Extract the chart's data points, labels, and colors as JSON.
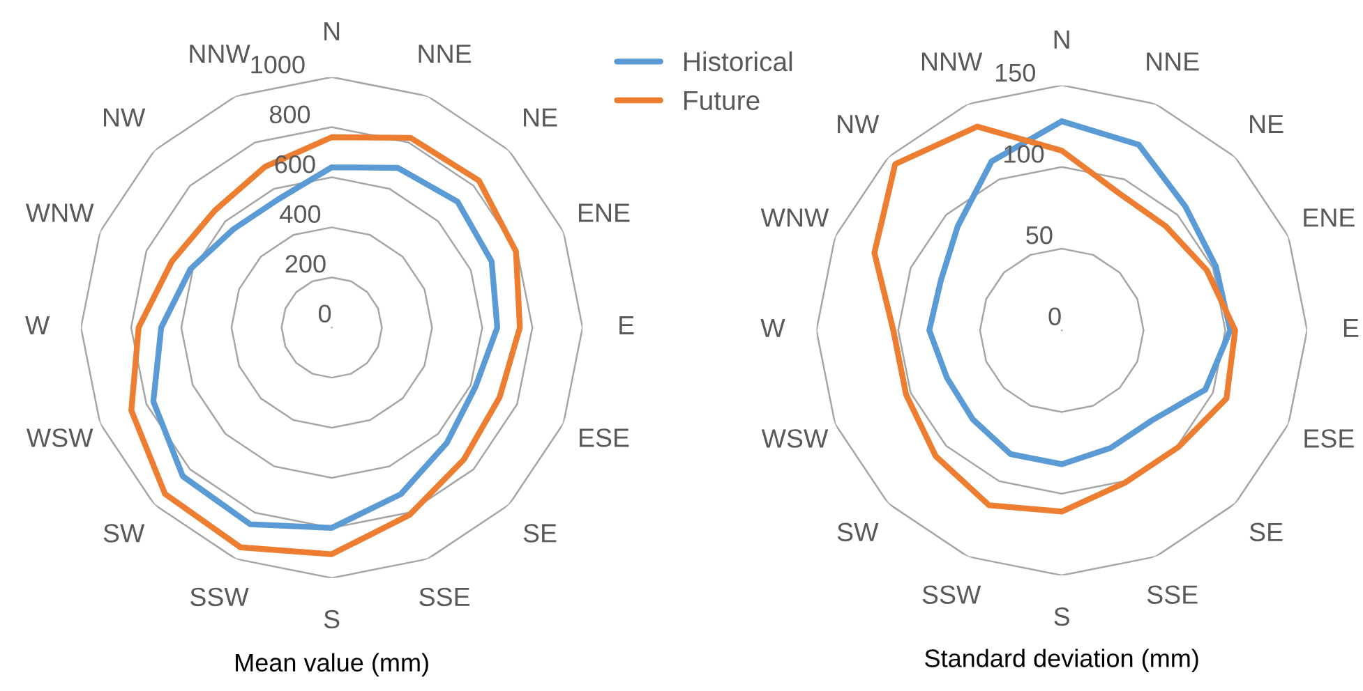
{
  "chart_data": [
    {
      "type": "radar",
      "xlabel": "Mean value (mm)",
      "categories": [
        "N",
        "NNE",
        "NE",
        "ENE",
        "E",
        "ESE",
        "SE",
        "SSE",
        "S",
        "SSW",
        "SW",
        "WSW",
        "W",
        "WNW",
        "NW",
        "NNW"
      ],
      "ylim": [
        0,
        1000
      ],
      "yticks": [
        0,
        200,
        400,
        600,
        800,
        1000
      ],
      "grid": true,
      "legend": "top right",
      "series": [
        {
          "name": "Historical",
          "color": "#5b9bd5",
          "values": [
            640,
            690,
            710,
            690,
            660,
            620,
            650,
            720,
            800,
            850,
            840,
            770,
            680,
            610,
            555,
            555
          ]
        },
        {
          "name": "Future",
          "color": "#ed7d31",
          "values": [
            760,
            820,
            830,
            795,
            750,
            725,
            745,
            810,
            905,
            950,
            940,
            865,
            770,
            690,
            660,
            695
          ]
        }
      ]
    },
    {
      "type": "radar",
      "xlabel": "Standard deviation (mm)",
      "categories": [
        "N",
        "NNE",
        "NE",
        "ENE",
        "E",
        "ESE",
        "SE",
        "SSE",
        "S",
        "SSW",
        "SW",
        "WSW",
        "W",
        "WNW",
        "NW",
        "NNW"
      ],
      "ylim": [
        0,
        150
      ],
      "yticks": [
        0,
        50,
        100,
        150
      ],
      "grid": true,
      "series": [
        {
          "color": "#5b9bd5",
          "values": [
            128,
            123,
            107,
            102,
            103,
            95,
            78,
            78,
            82,
            82,
            77,
            76,
            81,
            80,
            90,
            112
          ]
        },
        {
          "color": "#ed7d31",
          "values": [
            110,
            91,
            90,
            96,
            106,
            109,
            101,
            101,
            111,
            116,
            109,
            103,
            103,
            124,
            144,
            135
          ]
        }
      ]
    }
  ]
}
